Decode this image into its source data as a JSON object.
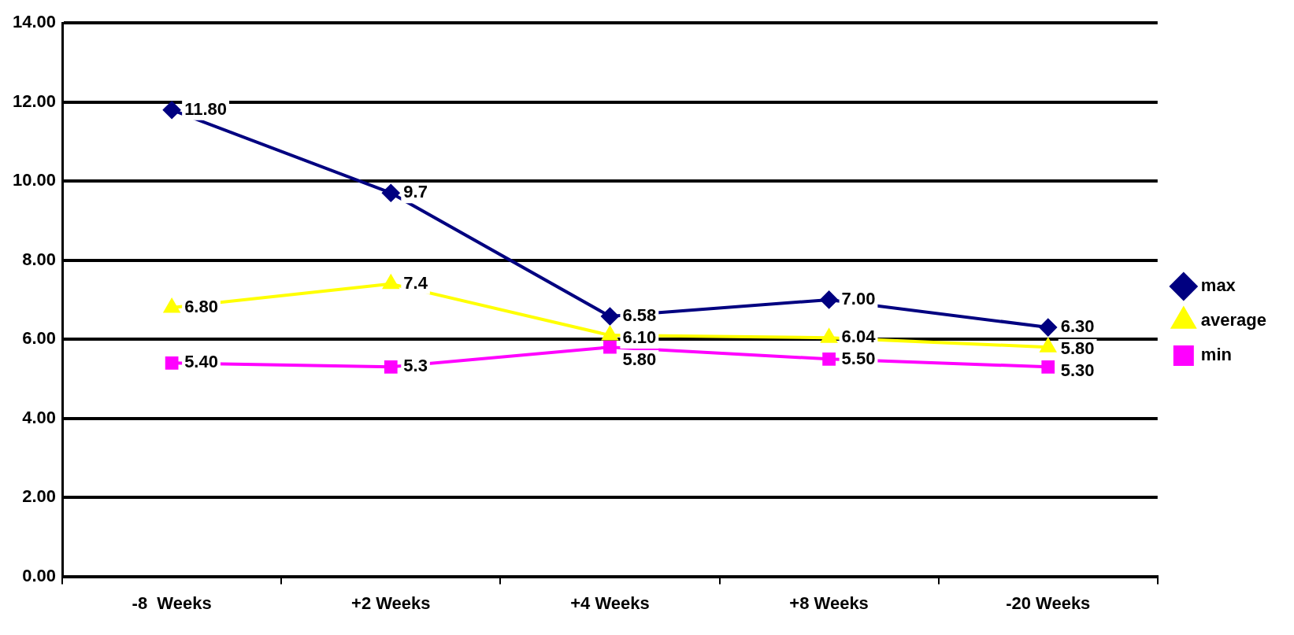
{
  "chart_data": {
    "type": "line",
    "categories": [
      "-8  Weeks",
      "+2 Weeks",
      "+4 Weeks",
      "+8 Weeks",
      "-20 Weeks"
    ],
    "series": [
      {
        "name": "max",
        "color": "#000080",
        "marker": "diamond",
        "values": [
          11.8,
          9.7,
          6.58,
          7.0,
          6.3
        ],
        "value_labels": [
          "11.80",
          "9.7",
          "6.58",
          "7.00",
          "6.30"
        ]
      },
      {
        "name": "average",
        "color": "#ffff00",
        "marker": "triangle",
        "values": [
          6.8,
          7.4,
          6.1,
          6.04,
          5.8
        ],
        "value_labels": [
          "6.80",
          "7.4",
          "6.10",
          "6.04",
          "5.80"
        ]
      },
      {
        "name": "min",
        "color": "#ff00ff",
        "marker": "square",
        "values": [
          5.4,
          5.3,
          5.8,
          5.5,
          5.3
        ],
        "value_labels": [
          "5.40",
          "5.3",
          "5.80",
          "5.50",
          "5.30"
        ]
      }
    ],
    "ylim": [
      0,
      14
    ],
    "yticks": [
      {
        "value": 0,
        "label": "0.00"
      },
      {
        "value": 2,
        "label": "2.00"
      },
      {
        "value": 4,
        "label": "4.00"
      },
      {
        "value": 6,
        "label": "6.00"
      },
      {
        "value": 8,
        "label": "8.00"
      },
      {
        "value": 10,
        "label": "10.00"
      },
      {
        "value": 12,
        "label": "12.00"
      },
      {
        "value": 14,
        "label": "14.00"
      }
    ],
    "grid": "y",
    "legend": "right"
  }
}
